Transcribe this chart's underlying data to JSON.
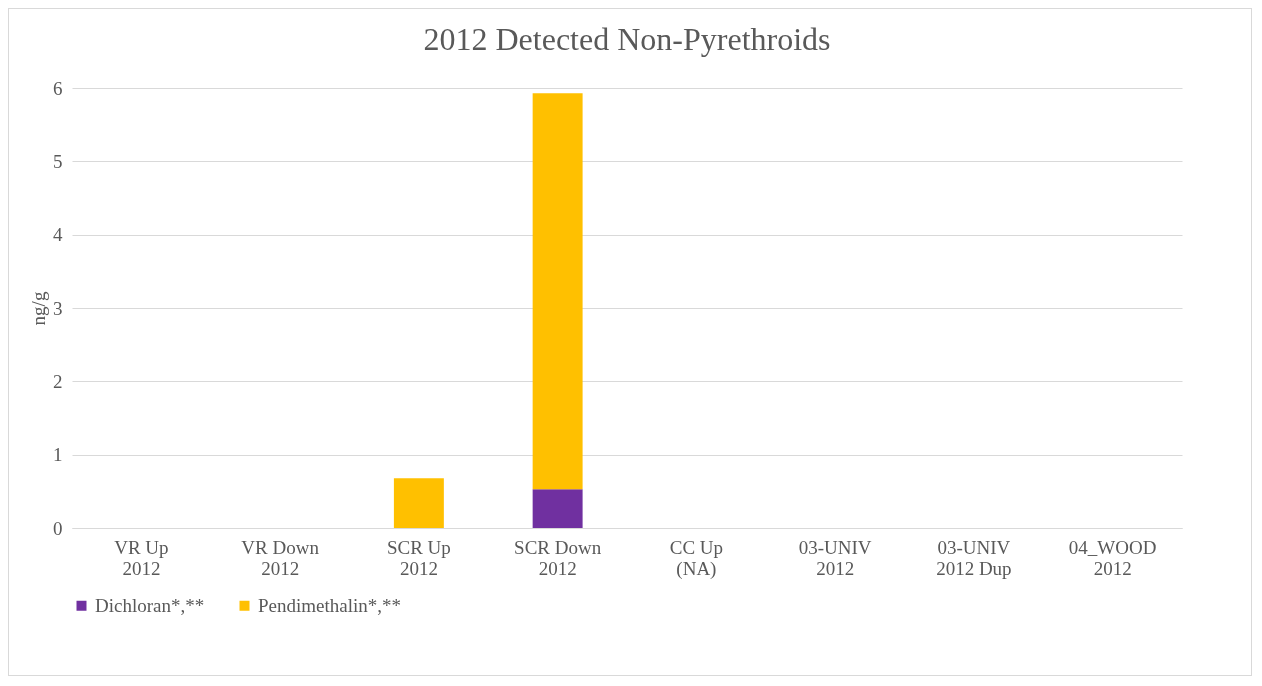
{
  "chart_data": {
    "type": "bar",
    "title": "2012 Detected Non-Pyrethroids",
    "ylabel": "ng/g",
    "categories": [
      "VR Up 2012",
      "VR Down 2012",
      "SCR Up 2012",
      "SCR Down 2012",
      "CC Up (NA)",
      "03-UNIV 2012",
      "03-UNIV 2012 Dup",
      "04_WOOD 2012"
    ],
    "series": [
      {
        "name": "Dichloran*,**",
        "color": "#7030a0",
        "values": [
          0,
          0,
          0,
          0.53,
          0,
          0,
          0,
          0
        ]
      },
      {
        "name": "Pendimethalin*,**",
        "color": "#ffc000",
        "values": [
          0,
          0,
          0.68,
          5.4,
          0,
          0,
          0,
          0
        ]
      }
    ],
    "stacked": true,
    "ylim": [
      0,
      6
    ],
    "yticks": [
      0,
      1,
      2,
      3,
      4,
      5,
      6
    ],
    "grid": "y",
    "legend": "bottom"
  }
}
